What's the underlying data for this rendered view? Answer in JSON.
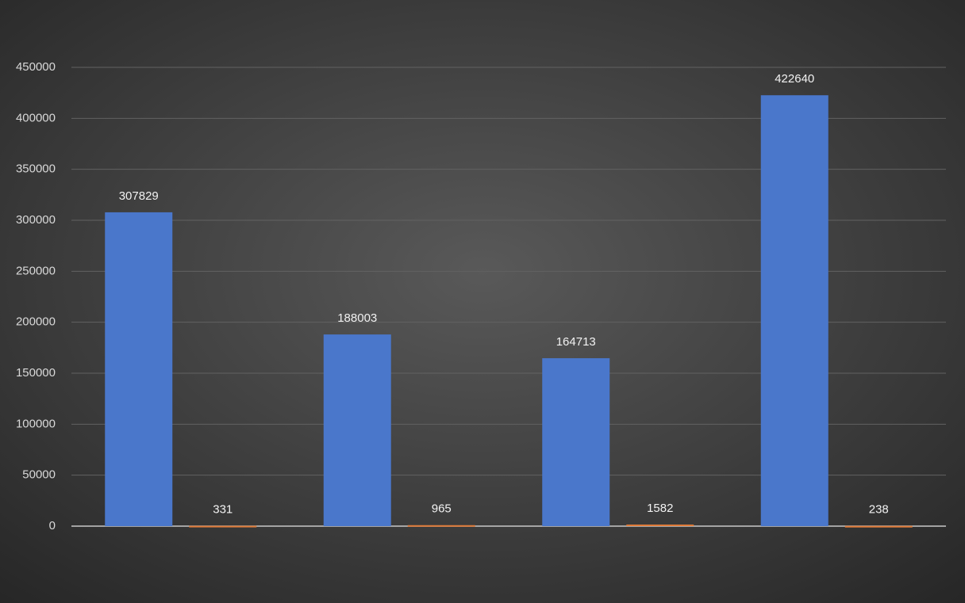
{
  "chart_data": {
    "type": "bar",
    "categories": [
      null,
      null,
      null,
      null
    ],
    "series": [
      {
        "color": "#4a77cb",
        "values": [
          307829,
          188003,
          164713,
          422640
        ]
      },
      {
        "color": "#e07b39",
        "values": [
          331,
          965,
          1582,
          238
        ]
      }
    ],
    "ylim": [
      0,
      450000
    ],
    "yticks": [
      0,
      50000,
      100000,
      150000,
      200000,
      250000,
      300000,
      350000,
      400000,
      450000
    ],
    "grid": true
  }
}
